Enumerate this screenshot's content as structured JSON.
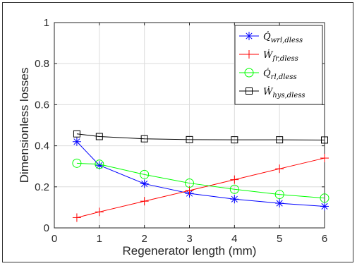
{
  "chart_data": {
    "type": "line",
    "xlabel": "Regenerator length (mm)",
    "ylabel": "Dimensionless losses",
    "xlim": [
      0,
      6
    ],
    "ylim": [
      0,
      1
    ],
    "x_ticks": [
      "0",
      "1",
      "2",
      "3",
      "4",
      "5",
      "6"
    ],
    "y_ticks": [
      "0",
      "0.2",
      "0.4",
      "0.6",
      "0.8",
      "1"
    ],
    "grid": true,
    "legend_position": "top-right",
    "x": [
      0.5,
      1,
      2,
      3,
      4,
      5,
      6
    ],
    "series": [
      {
        "name": "Q̇wrl,dless",
        "base": "Q̇",
        "sub": "wrl,dless",
        "color": "#0000ff",
        "marker": "asterisk",
        "values": [
          0.42,
          0.305,
          0.215,
          0.168,
          0.14,
          0.12,
          0.105
        ]
      },
      {
        "name": "Ẇfr,dless",
        "base": "Ẇ",
        "sub": "fr,dless",
        "color": "#ff0000",
        "marker": "plus",
        "values": [
          0.05,
          0.078,
          0.13,
          0.182,
          0.235,
          0.288,
          0.34
        ]
      },
      {
        "name": "Q̇rl,dless",
        "base": "Q̇",
        "sub": "rl,dless",
        "color": "#00ff00",
        "marker": "circle",
        "values": [
          0.315,
          0.31,
          0.26,
          0.218,
          0.188,
          0.163,
          0.145
        ]
      },
      {
        "name": "Ẇhys,dless",
        "base": "Ẇ",
        "sub": "hys,dless",
        "color": "#000000",
        "marker": "square",
        "values": [
          0.458,
          0.445,
          0.434,
          0.43,
          0.429,
          0.429,
          0.428
        ]
      }
    ]
  }
}
